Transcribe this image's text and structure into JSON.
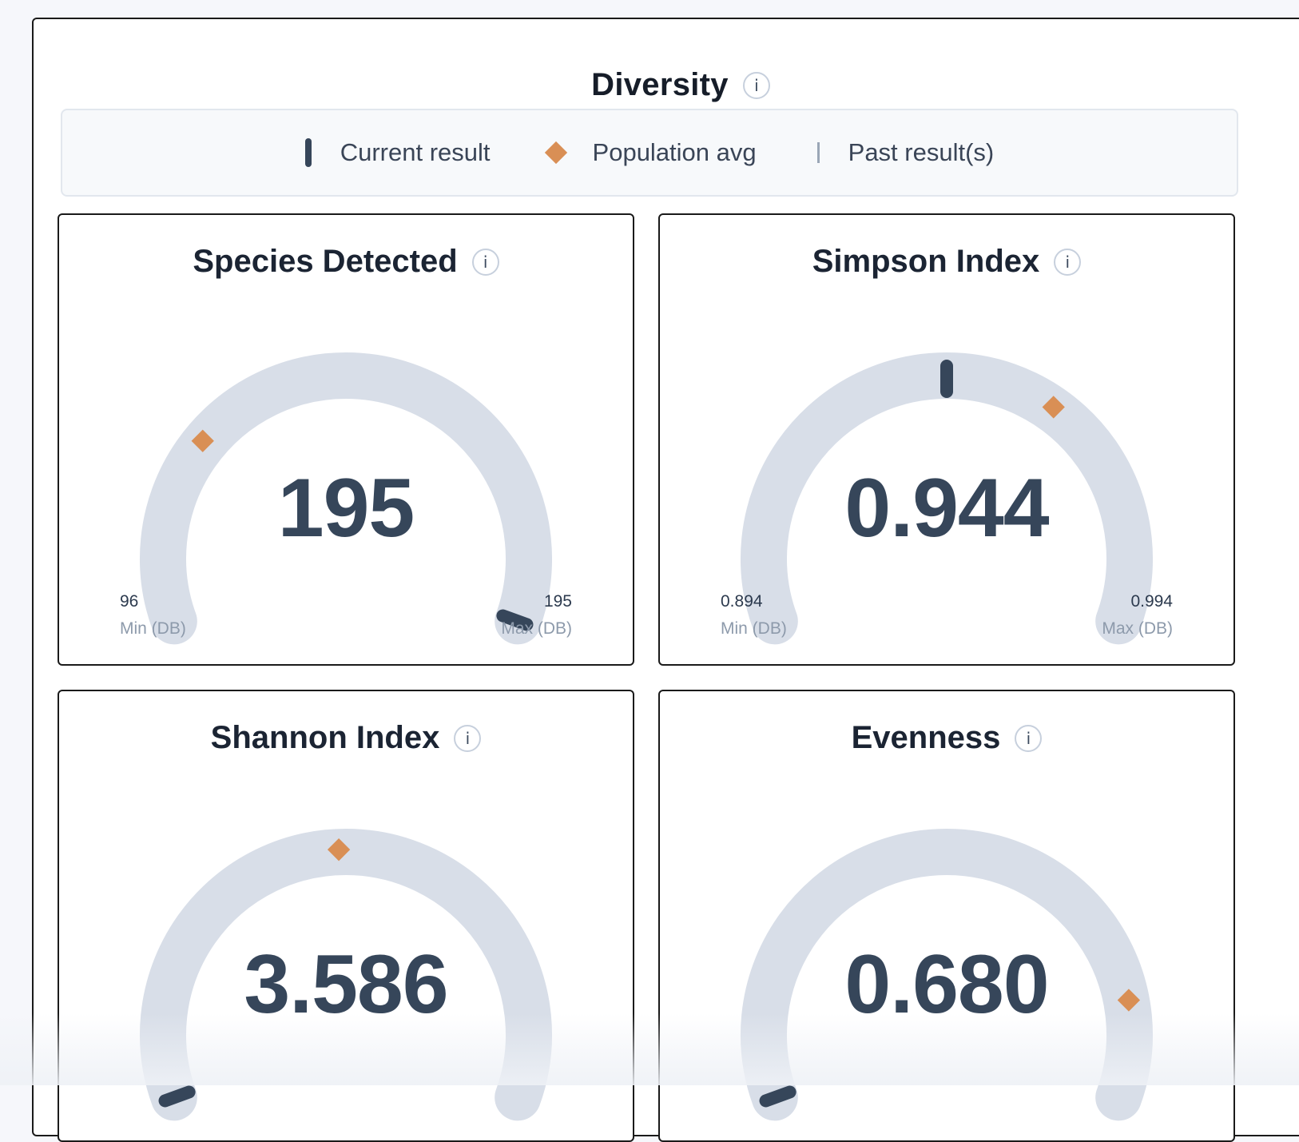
{
  "section": {
    "title": "Diversity",
    "info_icon": "i"
  },
  "legend": {
    "current": "Current result",
    "avg": "Population avg",
    "past": "Past result(s)"
  },
  "colors": {
    "track": "#d8dee8",
    "needle": "#36465a",
    "avg_marker": "#d98f55"
  },
  "cards": [
    {
      "title": "Species Detected",
      "value": "195",
      "min": "96",
      "max": "195",
      "min_label": "Min (DB)",
      "max_label": "Max (DB)",
      "current_fraction": 1.0,
      "avg_fraction": 0.27
    },
    {
      "title": "Simpson Index",
      "value": "0.944",
      "min": "0.894",
      "max": "0.994",
      "min_label": "Min (DB)",
      "max_label": "Max (DB)",
      "current_fraction": 0.5,
      "avg_fraction": 0.66
    },
    {
      "title": "Shannon Index",
      "value": "3.586",
      "current_fraction": 0.0,
      "avg_fraction": 0.49
    },
    {
      "title": "Evenness",
      "value": "0.680",
      "current_fraction": 0.0,
      "avg_fraction": 0.86
    }
  ]
}
